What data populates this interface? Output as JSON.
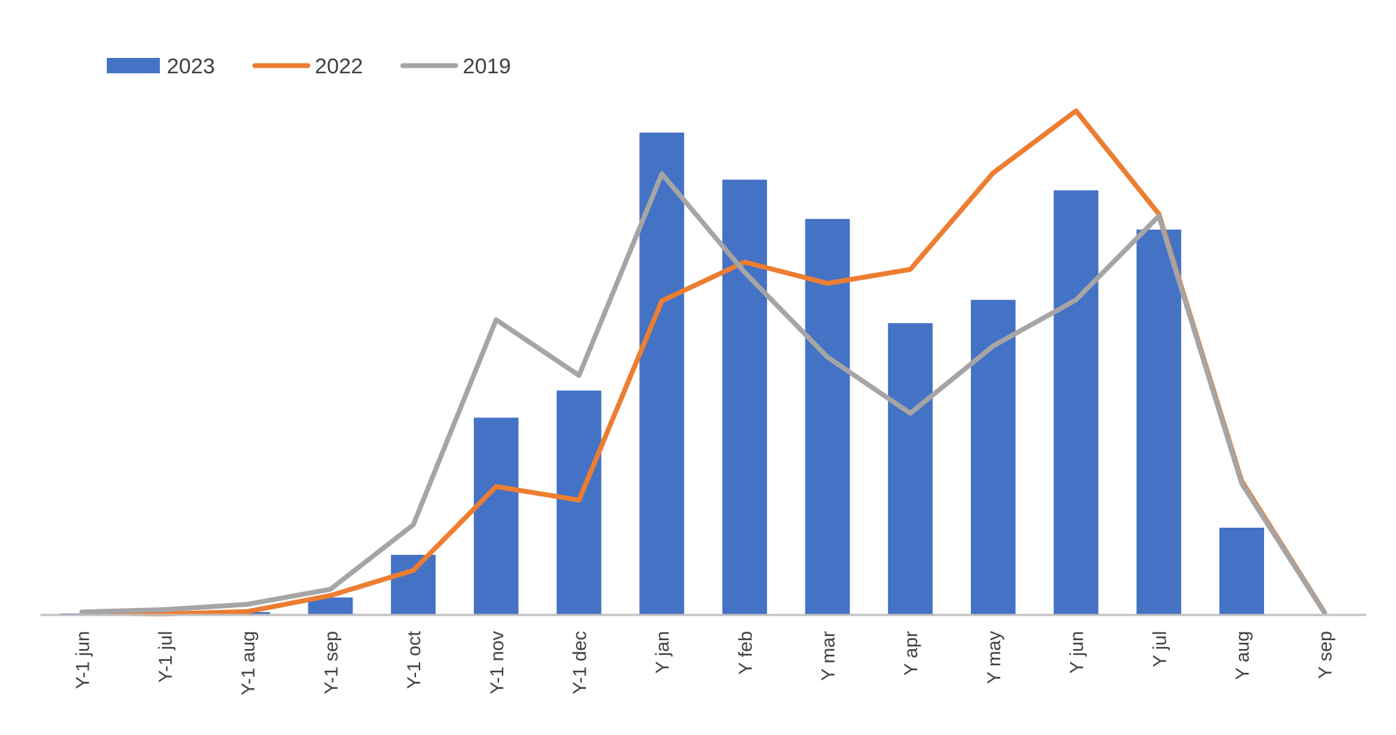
{
  "chart_data": {
    "type": "bar+line",
    "title": "",
    "xlabel": "",
    "ylabel": "",
    "ylim": [
      0,
      100
    ],
    "grid": false,
    "legend_position": "top-left",
    "categories": [
      "Y-1 jun",
      "Y-1 jul",
      "Y-1 aug",
      "Y-1 sep",
      "Y-1 oct",
      "Y-1 nov",
      "Y-1 dec",
      "Y jan",
      "Y feb",
      "Y mar",
      "Y apr",
      "Y may",
      "Y jun",
      "Y jul",
      "Y aug",
      "Y sep"
    ],
    "series": [
      {
        "name": "2023",
        "kind": "bar",
        "color": "#4472C4",
        "values": [
          0.3,
          0.4,
          0.6,
          3.6,
          12.4,
          40.7,
          46.3,
          99.5,
          89.8,
          81.7,
          60.2,
          65.0,
          87.6,
          79.5,
          18.0,
          0.1
        ]
      },
      {
        "name": "2022",
        "kind": "line",
        "color": "#ED7D31",
        "values": [
          0.4,
          0.2,
          0.7,
          4.0,
          9.2,
          26.5,
          23.7,
          64.8,
          72.8,
          68.4,
          71.3,
          91.2,
          104.0,
          82.7,
          27.6,
          0.5
        ]
      },
      {
        "name": "2019",
        "kind": "line",
        "color": "#A5A5A5",
        "values": [
          0.6,
          1.1,
          2.2,
          5.3,
          18.6,
          60.9,
          49.4,
          91.0,
          70.7,
          53.2,
          41.6,
          55.5,
          65.0,
          82.3,
          27.1,
          0.4
        ]
      }
    ]
  }
}
